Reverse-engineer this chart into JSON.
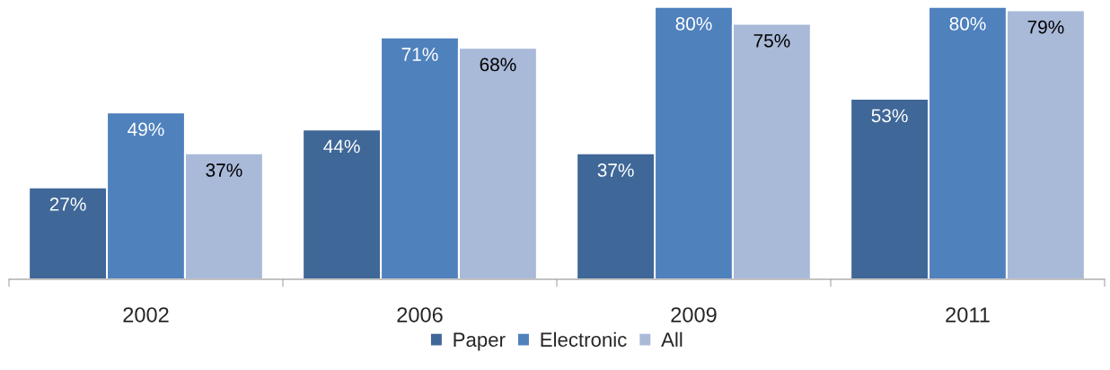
{
  "chart_data": {
    "type": "bar",
    "categories": [
      "2002",
      "2006",
      "2009",
      "2011"
    ],
    "series": [
      {
        "name": "Paper",
        "color": "#3f6797",
        "values": [
          27,
          44,
          37,
          53
        ],
        "value_labels": [
          "27%",
          "44%",
          "37%",
          "53%"
        ]
      },
      {
        "name": "Electronic",
        "color": "#4f81bd",
        "values": [
          49,
          71,
          80,
          80
        ],
        "value_labels": [
          "49%",
          "71%",
          "80%",
          "80%"
        ]
      },
      {
        "name": "All",
        "color": "#a9b9d8",
        "values": [
          37,
          68,
          75,
          79
        ],
        "value_labels": [
          "37%",
          "68%",
          "75%",
          "79%"
        ]
      }
    ],
    "tick_labels": "x",
    "grid": false,
    "legend": "bottom"
  }
}
